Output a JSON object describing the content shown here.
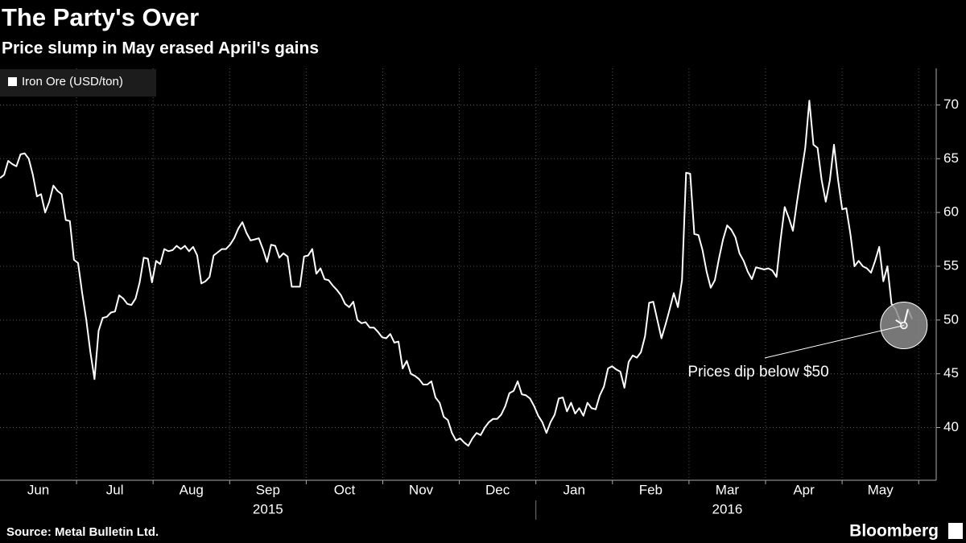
{
  "chart_data": {
    "type": "line",
    "title": "The Party's Over",
    "subtitle": "Price slump in May erased April's gains",
    "source": "Source: Metal Bulletin Ltd.",
    "brand": "Bloomberg",
    "annotation": "Prices dip below $50",
    "months": [
      "Jun",
      "Jul",
      "Aug",
      "Sep",
      "Oct",
      "Nov",
      "Dec",
      "Jan",
      "Feb",
      "Mar",
      "Apr",
      "May"
    ],
    "years": [
      "2015",
      "2016"
    ],
    "series": [
      {
        "name": "Iron Ore (USD/ton)",
        "color": "#ffffff",
        "values": [
          63.2,
          63.5,
          64.8,
          64.5,
          64.3,
          65.4,
          65.5,
          65,
          63.5,
          61.5,
          61.7,
          60,
          61,
          62.5,
          62,
          61.7,
          59.3,
          59.2,
          55.6,
          55.3,
          52.5,
          50,
          47,
          44.5,
          49,
          50.2,
          50.3,
          50.7,
          50.8,
          52.3,
          52,
          51.5,
          51.4,
          52,
          53.5,
          55.8,
          55.7,
          53.5,
          55.5,
          55.2,
          56.6,
          56.4,
          56.5,
          56.9,
          56.6,
          56.9,
          56.4,
          56.8,
          56,
          53.4,
          53.6,
          54,
          56,
          56.3,
          56.6,
          56.6,
          57,
          57.6,
          58.5,
          59.1,
          58.1,
          57.4,
          57.5,
          57.6,
          56.6,
          55.4,
          57,
          56.9,
          55.8,
          56.2,
          55.9,
          53.1,
          53.1,
          53.1,
          55.9,
          56,
          56.6,
          54.3,
          54.8,
          53.8,
          53.7,
          53.2,
          52.8,
          52.3,
          51.5,
          51.2,
          51.7,
          50,
          49.7,
          49.8,
          49.3,
          49.3,
          48.9,
          48.4,
          48.3,
          48.7,
          47.9,
          48,
          45.5,
          46.2,
          45,
          44.8,
          44.5,
          44,
          44,
          44.3,
          42.8,
          42.3,
          41,
          40.7,
          39.5,
          38.8,
          39,
          38.6,
          38.3,
          39,
          39.5,
          39.3,
          40,
          40.5,
          40.8,
          40.8,
          41.2,
          42,
          43.2,
          43.4,
          44.3,
          43.1,
          43,
          42.7,
          42,
          41.1,
          40.5,
          39.5,
          40.5,
          41.2,
          42.7,
          42.8,
          41.5,
          42.3,
          41.3,
          41.8,
          41.1,
          42.3,
          41.8,
          41.7,
          43,
          43.8,
          45.5,
          45.7,
          45.4,
          45.2,
          43.7,
          46.1,
          46.7,
          46.5,
          47,
          48.5,
          51.6,
          51.7,
          50,
          48.3,
          49.6,
          51,
          52.5,
          51.2,
          53.7,
          63.7,
          63.6,
          58,
          57.9,
          56.5,
          54.5,
          53,
          53.7,
          55.7,
          57.5,
          58.8,
          58.4,
          57.7,
          56.2,
          55.5,
          54.5,
          53.8,
          54.9,
          54.8,
          54.7,
          54.8,
          54.6,
          54,
          57.5,
          60.5,
          59.5,
          58.3,
          61,
          63.5,
          66,
          70.4,
          66.3,
          66,
          63,
          61,
          63,
          66.3,
          63,
          60.3,
          60.4,
          58,
          55,
          55.5,
          55,
          54.8,
          54.4,
          55.5,
          56.8,
          53.6,
          55,
          51.5,
          51,
          50,
          49.5,
          51,
          50.1
        ]
      }
    ],
    "ylim": [
      35.1,
      73.4
    ],
    "yticks": [
      40,
      45,
      50,
      55,
      60,
      65,
      70
    ],
    "grid": true,
    "legend": "top-left"
  }
}
